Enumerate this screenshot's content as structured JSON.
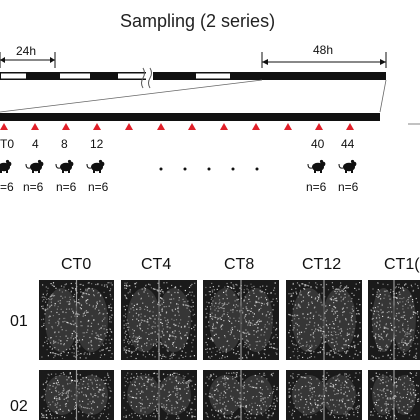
{
  "title": "Sampling (2 series)",
  "durations": {
    "first": "24h",
    "second": "48h"
  },
  "timepoints": [
    "T0",
    "4",
    "8",
    "12",
    "40",
    "44"
  ],
  "n_labels": [
    "=6",
    "n=6",
    "n=6",
    "n=6",
    "n=6",
    "n=6"
  ],
  "ellipsis_dots": 5,
  "arrow_count": 12,
  "columns": [
    "CT0",
    "CT4",
    "CT8",
    "CT12",
    "CT1("
  ],
  "rows": [
    "01",
    "02"
  ],
  "colors": {
    "bar": "#111111",
    "arrow": "#e0202a",
    "panel": "#1a1a1a"
  },
  "icons": {
    "mouse": "mouse-icon",
    "break": "axis-break-icon",
    "arrow": "triangle-arrow-icon"
  }
}
